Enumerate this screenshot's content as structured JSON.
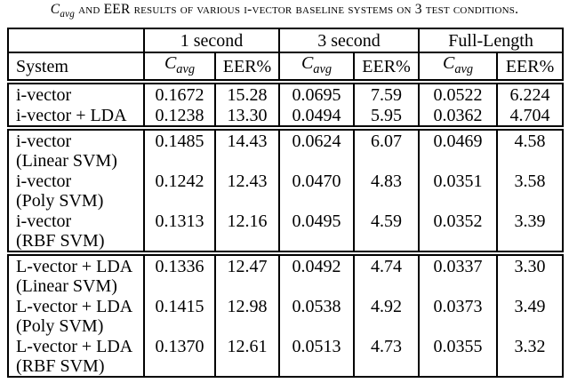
{
  "caption": {
    "c": "C",
    "sub": "avg",
    "text": " and EER results of various i-vector baseline systems on 3 test conditions."
  },
  "table": {
    "headers": {
      "system": "System",
      "col_groups": [
        "1 second",
        "3 second",
        "Full-Length"
      ],
      "cavg_c": "C",
      "cavg_sub": "avg",
      "eer": "EER%"
    },
    "groups": [
      {
        "rows": [
          {
            "lines": [
              "i-vector"
            ],
            "values": [
              "0.1672",
              "15.28",
              "0.0695",
              "7.59",
              "0.0522",
              "6.224"
            ]
          },
          {
            "lines": [
              "i-vector + LDA"
            ],
            "values": [
              "0.1238",
              "13.30",
              "0.0494",
              "5.95",
              "0.0362",
              "4.704"
            ]
          }
        ]
      },
      {
        "rows": [
          {
            "lines": [
              "i-vector",
              "(Linear SVM)"
            ],
            "values": [
              "0.1485",
              "14.43",
              "0.0624",
              "6.07",
              "0.0469",
              "4.58"
            ]
          },
          {
            "lines": [
              "i-vector",
              "(Poly SVM)"
            ],
            "values": [
              "0.1242",
              "12.43",
              "0.0470",
              "4.83",
              "0.0351",
              "3.58"
            ]
          },
          {
            "lines": [
              "i-vector",
              "(RBF SVM)"
            ],
            "values": [
              "0.1313",
              "12.16",
              "0.0495",
              "4.59",
              "0.0352",
              "3.39"
            ]
          }
        ]
      },
      {
        "rows": [
          {
            "lines": [
              "L-vector + LDA",
              "(Linear SVM)"
            ],
            "values": [
              "0.1336",
              "12.47",
              "0.0492",
              "4.74",
              "0.0337",
              "3.30"
            ]
          },
          {
            "lines": [
              "L-vector + LDA",
              "(Poly SVM)"
            ],
            "values": [
              "0.1415",
              "12.98",
              "0.0538",
              "4.92",
              "0.0373",
              "3.49"
            ]
          },
          {
            "lines": [
              "L-vector + LDA",
              "(RBF SVM)"
            ],
            "values": [
              "0.1370",
              "12.61",
              "0.0513",
              "4.73",
              "0.0355",
              "3.32"
            ]
          }
        ]
      }
    ]
  }
}
